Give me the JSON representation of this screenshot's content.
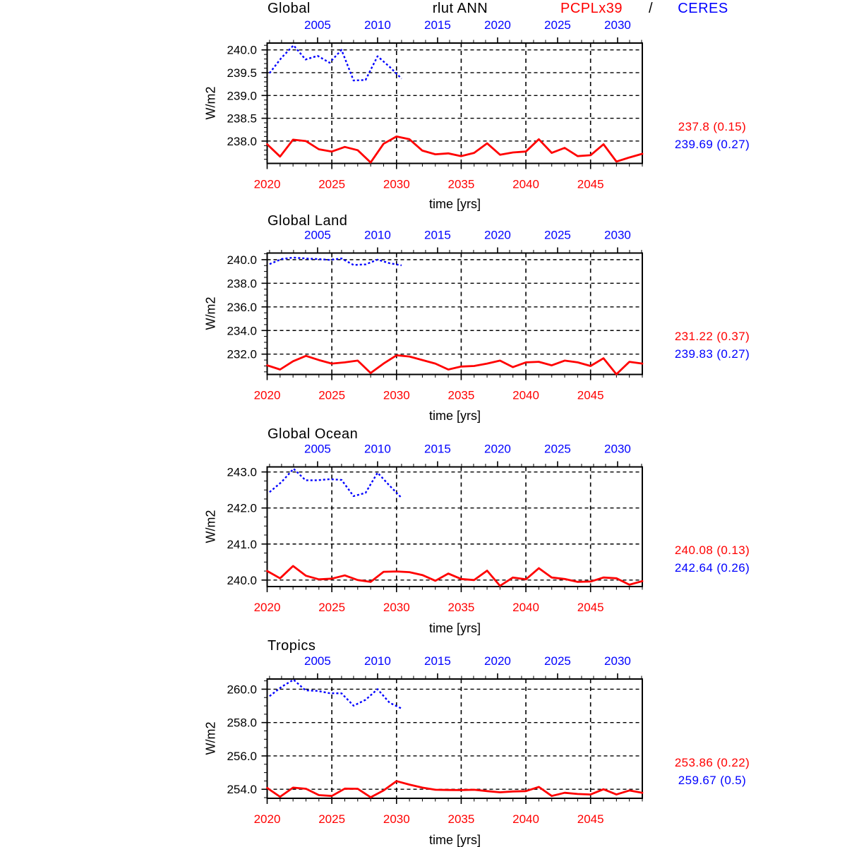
{
  "header": {
    "variable": "rlut ANN",
    "model": "PCPLx39",
    "separator": "/",
    "obs": "CERES"
  },
  "colors": {
    "model": "#ff0000",
    "obs": "#0000ff",
    "axis": "#000000",
    "background": "#ffffff"
  },
  "chart_data": [
    {
      "type": "line",
      "title": "Global",
      "ylabel": "W/m2",
      "xlabel": "time [yrs]",
      "ylim": [
        237.51,
        240.15
      ],
      "yticks": [
        238.0,
        238.5,
        239.0,
        239.5,
        240.0
      ],
      "y_minor_step": 0.1,
      "x_bottom": {
        "lim": [
          2020,
          2049
        ],
        "ticks": [
          2020,
          2025,
          2030,
          2035,
          2040,
          2045
        ],
        "minor_step": 1,
        "label_color": "#ff0000"
      },
      "x_top": {
        "lim": [
          2000.8,
          2032.06
        ],
        "ticks": [
          2005,
          2010,
          2015,
          2020,
          2025,
          2030
        ],
        "minor_step": 1,
        "label_color": "#0000ff"
      },
      "series": [
        {
          "name": "PCPLx39",
          "axis": "bottom",
          "color": "#ff0000",
          "line_style": "solid",
          "x_start": 2020,
          "values": [
            237.93,
            237.66,
            238.03,
            238.0,
            237.82,
            237.77,
            237.87,
            237.8,
            237.53,
            237.94,
            238.1,
            238.04,
            237.79,
            237.71,
            237.73,
            237.67,
            237.74,
            237.95,
            237.7,
            237.75,
            237.77,
            238.04,
            237.74,
            237.85,
            237.67,
            237.69,
            237.93,
            237.55,
            237.64,
            237.72
          ]
        },
        {
          "name": "CERES",
          "axis": "top",
          "color": "#0000ff",
          "line_style": "dotted",
          "x_start": 2001,
          "values": [
            239.49,
            239.83,
            240.1,
            239.79,
            239.87,
            239.72,
            240.0,
            239.33,
            239.34,
            239.86,
            239.63,
            239.37
          ]
        }
      ],
      "stats": {
        "model": "237.8 (0.15)",
        "obs": "239.69 (0.27)"
      }
    },
    {
      "type": "line",
      "title": "Global Land",
      "ylabel": "W/m2",
      "xlabel": "time [yrs]",
      "ylim": [
        230.28,
        240.56
      ],
      "yticks": [
        232.0,
        234.0,
        236.0,
        238.0,
        240.0
      ],
      "y_minor_step": 0.5,
      "x_bottom": {
        "lim": [
          2020,
          2049
        ],
        "ticks": [
          2020,
          2025,
          2030,
          2035,
          2040,
          2045
        ],
        "minor_step": 1,
        "label_color": "#ff0000"
      },
      "x_top": {
        "lim": [
          2000.8,
          2032.06
        ],
        "ticks": [
          2005,
          2010,
          2015,
          2020,
          2025,
          2030
        ],
        "minor_step": 1,
        "label_color": "#0000ff"
      },
      "series": [
        {
          "name": "PCPLx39",
          "axis": "bottom",
          "color": "#ff0000",
          "line_style": "solid",
          "x_start": 2020,
          "values": [
            231.05,
            230.7,
            231.4,
            231.85,
            231.5,
            231.2,
            231.3,
            231.45,
            230.4,
            231.2,
            231.9,
            231.8,
            231.5,
            231.2,
            230.7,
            230.95,
            231.0,
            231.2,
            231.45,
            230.9,
            231.3,
            231.35,
            231.05,
            231.45,
            231.3,
            231.0,
            231.65,
            230.3,
            231.35,
            231.2
          ]
        },
        {
          "name": "CERES",
          "axis": "top",
          "color": "#0000ff",
          "line_style": "dotted",
          "x_start": 2001,
          "values": [
            239.62,
            240.05,
            240.18,
            240.1,
            240.05,
            239.98,
            240.1,
            239.55,
            239.6,
            240.0,
            239.7,
            239.52
          ]
        }
      ],
      "stats": {
        "model": "231.22 (0.37)",
        "obs": "239.83 (0.27)"
      }
    },
    {
      "type": "line",
      "title": "Global Ocean",
      "ylabel": "W/m2",
      "xlabel": "time [yrs]",
      "ylim": [
        239.82,
        243.14
      ],
      "yticks": [
        240.0,
        241.0,
        242.0,
        243.0
      ],
      "y_minor_step": 0.25,
      "x_bottom": {
        "lim": [
          2020,
          2049
        ],
        "ticks": [
          2020,
          2025,
          2030,
          2035,
          2040,
          2045
        ],
        "minor_step": 1,
        "label_color": "#ff0000"
      },
      "x_top": {
        "lim": [
          2000.8,
          2032.06
        ],
        "ticks": [
          2005,
          2010,
          2015,
          2020,
          2025,
          2030
        ],
        "minor_step": 1,
        "label_color": "#0000ff"
      },
      "series": [
        {
          "name": "PCPLx39",
          "axis": "bottom",
          "color": "#ff0000",
          "line_style": "solid",
          "x_start": 2020,
          "values": [
            240.25,
            240.05,
            240.39,
            240.12,
            240.02,
            240.04,
            240.13,
            240.0,
            239.95,
            240.23,
            240.24,
            240.22,
            240.14,
            239.98,
            240.18,
            240.03,
            240.0,
            240.26,
            239.84,
            240.07,
            240.02,
            240.33,
            240.07,
            240.03,
            239.95,
            239.96,
            240.07,
            240.05,
            239.87,
            239.97
          ]
        },
        {
          "name": "CERES",
          "axis": "top",
          "color": "#0000ff",
          "line_style": "dotted",
          "x_start": 2001,
          "values": [
            242.44,
            242.72,
            243.09,
            242.77,
            242.77,
            242.8,
            242.78,
            242.33,
            242.42,
            242.98,
            242.62,
            242.28
          ]
        }
      ],
      "stats": {
        "model": "240.08 (0.13)",
        "obs": "242.64 (0.26)"
      }
    },
    {
      "type": "line",
      "title": "Tropics",
      "ylabel": "W/m2",
      "xlabel": "time [yrs]",
      "ylim": [
        253.46,
        260.61
      ],
      "yticks": [
        254.0,
        256.0,
        258.0,
        260.0
      ],
      "y_minor_step": 0.5,
      "x_bottom": {
        "lim": [
          2020,
          2049
        ],
        "ticks": [
          2020,
          2025,
          2030,
          2035,
          2040,
          2045
        ],
        "minor_step": 1,
        "label_color": "#ff0000"
      },
      "x_top": {
        "lim": [
          2000.8,
          2032.06
        ],
        "ticks": [
          2005,
          2010,
          2015,
          2020,
          2025,
          2030
        ],
        "minor_step": 1,
        "label_color": "#0000ff"
      },
      "series": [
        {
          "name": "PCPLx39",
          "axis": "bottom",
          "color": "#ff0000",
          "line_style": "solid",
          "x_start": 2020,
          "values": [
            254.08,
            253.55,
            254.1,
            254.03,
            253.65,
            253.6,
            254.04,
            254.03,
            253.52,
            253.93,
            254.49,
            254.28,
            254.1,
            253.97,
            253.96,
            253.95,
            253.97,
            253.89,
            253.82,
            253.87,
            253.89,
            254.14,
            253.6,
            253.79,
            253.72,
            253.69,
            254.0,
            253.69,
            253.93,
            253.79
          ]
        },
        {
          "name": "CERES",
          "axis": "top",
          "color": "#0000ff",
          "line_style": "dotted",
          "x_start": 2001,
          "values": [
            259.58,
            260.14,
            260.57,
            259.93,
            259.9,
            259.76,
            259.75,
            259.01,
            259.36,
            260.0,
            259.19,
            258.84
          ]
        }
      ],
      "stats": {
        "model": "253.86 (0.22)",
        "obs": "259.67 (0.5)"
      }
    }
  ]
}
